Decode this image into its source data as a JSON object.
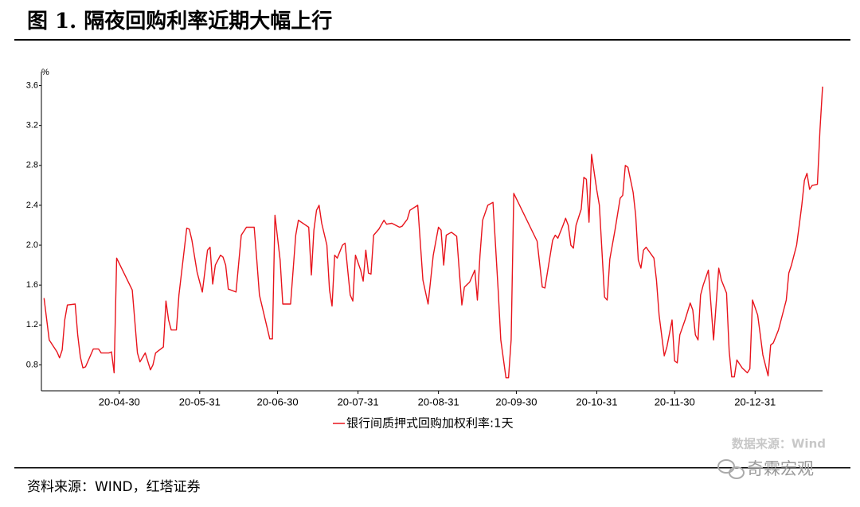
{
  "chart_data": {
    "type": "line",
    "title": "图 1. 隔夜回购利率近期大幅上行",
    "ylabel": "%",
    "watermark": "数据来源：Wind",
    "source": "资料来源：WIND，红塔证券",
    "logo": "奇霖宏观",
    "xlim": [
      "20-03-31",
      "21-01-26"
    ],
    "xticks": [
      "20-04-30",
      "20-05-31",
      "20-06-30",
      "20-07-31",
      "20-08-31",
      "20-09-30",
      "20-10-31",
      "20-11-30",
      "20-12-31"
    ],
    "ylim": [
      0.54,
      3.74
    ],
    "yticks": [
      0.8,
      1.2,
      1.6,
      {
        "value": 2,
        "label": "2.0"
      },
      2.4,
      2.8,
      3.2,
      3.6
    ],
    "grid": false,
    "legend": "bottom",
    "x": [
      "20-04-01",
      "20-04-03",
      "20-04-06",
      "20-04-07",
      "20-04-08",
      "20-04-09",
      "20-04-10",
      "20-04-13",
      "20-04-14",
      "20-04-15",
      "20-04-16",
      "20-04-17",
      "20-04-20",
      "20-04-22",
      "20-04-23",
      "20-04-26",
      "20-04-27",
      "20-04-28",
      "20-04-29",
      "20-05-05",
      "20-05-07",
      "20-05-08",
      "20-05-10",
      "20-05-12",
      "20-05-13",
      "20-05-14",
      "20-05-17",
      "20-05-18",
      "20-05-19",
      "20-05-20",
      "20-05-22",
      "20-05-23",
      "20-05-25",
      "20-05-26",
      "20-05-27",
      "20-05-28",
      "20-05-30",
      "20-06-01",
      "20-06-03",
      "20-06-04",
      "20-06-05",
      "20-06-06",
      "20-06-08",
      "20-06-09",
      "20-06-10",
      "20-06-11",
      "20-06-14",
      "20-06-16",
      "20-06-18",
      "20-06-21",
      "20-06-22",
      "20-06-23",
      "20-06-27",
      "20-06-28",
      "20-06-29",
      "20-07-01",
      "20-07-02",
      "20-07-05",
      "20-07-07",
      "20-07-08",
      "20-07-12",
      "20-07-13",
      "20-07-14",
      "20-07-15",
      "20-07-16",
      "20-07-17",
      "20-07-19",
      "20-07-20",
      "20-07-21",
      "20-07-22",
      "20-07-23",
      "20-07-25",
      "20-07-26",
      "20-07-28",
      "20-07-29",
      "20-07-30",
      "20-08-01",
      "20-08-02",
      "20-08-03",
      "20-08-04",
      "20-08-05",
      "20-08-06",
      "20-08-08",
      "20-08-10",
      "20-08-11",
      "20-08-13",
      "20-08-16",
      "20-08-17",
      "20-08-19",
      "20-08-20",
      "20-08-23",
      "20-08-25",
      "20-08-27",
      "20-08-29",
      "20-08-31",
      "20-09-01",
      "20-09-02",
      "20-09-03",
      "20-09-05",
      "20-09-07",
      "20-09-09",
      "20-09-10",
      "20-09-12",
      "20-09-14",
      "20-09-15",
      "20-09-16",
      "20-09-17",
      "20-09-19",
      "20-09-21",
      "20-09-23",
      "20-09-24",
      "20-09-26",
      "20-09-27",
      "20-09-28",
      "20-09-29",
      "20-10-08",
      "20-10-10",
      "20-10-11",
      "20-10-14",
      "20-10-15",
      "20-10-16",
      "20-10-18",
      "20-10-19",
      "20-10-20",
      "20-10-21",
      "20-10-22",
      "20-10-23",
      "20-10-25",
      "20-10-26",
      "20-10-27",
      "20-10-28",
      "20-10-29",
      "20-10-31",
      "20-11-01",
      "20-11-03",
      "20-11-04",
      "20-11-05",
      "20-11-07",
      "20-11-09",
      "20-11-10",
      "20-11-11",
      "20-11-12",
      "20-11-14",
      "20-11-15",
      "20-11-16",
      "20-11-17",
      "20-11-18",
      "20-11-19",
      "20-11-22",
      "20-11-23",
      "20-11-24",
      "20-11-26",
      "20-11-27",
      "20-11-29",
      "20-11-30",
      "20-12-01",
      "20-12-02",
      "20-12-04",
      "20-12-06",
      "20-12-07",
      "20-12-08",
      "20-12-09",
      "20-12-10",
      "20-12-11",
      "20-12-13",
      "20-12-15",
      "20-12-17",
      "20-12-18",
      "20-12-20",
      "20-12-21",
      "20-12-22",
      "20-12-23",
      "20-12-24",
      "20-12-26",
      "20-12-28",
      "20-12-29",
      "20-12-30",
      "21-01-01",
      "21-01-02",
      "21-01-03",
      "21-01-05",
      "21-01-06",
      "21-01-07",
      "21-01-09",
      "21-01-10",
      "21-01-12",
      "21-01-13",
      "21-01-14",
      "21-01-16",
      "21-01-17",
      "21-01-18",
      "21-01-19",
      "21-01-20",
      "21-01-21",
      "21-01-22",
      "21-01-24",
      "21-01-25",
      "21-01-26"
    ],
    "series": [
      {
        "name": "银行间质押式回购加权利率:1天",
        "color": "#e8141c",
        "values": [
          1.47,
          1.05,
          0.93,
          0.87,
          0.95,
          1.25,
          1.4,
          1.41,
          1.1,
          0.88,
          0.77,
          0.78,
          0.96,
          0.96,
          0.92,
          0.92,
          0.93,
          0.72,
          1.87,
          1.55,
          0.92,
          0.83,
          0.92,
          0.75,
          0.8,
          0.92,
          0.98,
          1.44,
          1.25,
          1.15,
          1.15,
          1.5,
          1.95,
          2.17,
          2.16,
          2.05,
          1.73,
          1.53,
          1.95,
          1.98,
          1.61,
          1.8,
          1.9,
          1.88,
          1.8,
          1.56,
          1.53,
          2.1,
          2.18,
          2.18,
          1.85,
          1.5,
          1.06,
          1.06,
          2.3,
          1.85,
          1.41,
          1.41,
          2.1,
          2.25,
          2.18,
          1.7,
          2.15,
          2.35,
          2.4,
          2.22,
          2.0,
          1.55,
          1.39,
          1.9,
          1.87,
          2.0,
          2.02,
          1.5,
          1.44,
          1.9,
          1.75,
          1.64,
          1.95,
          1.72,
          1.71,
          2.1,
          2.16,
          2.25,
          2.21,
          2.22,
          2.18,
          2.19,
          2.26,
          2.35,
          2.4,
          1.65,
          1.41,
          1.9,
          2.18,
          2.15,
          1.8,
          2.1,
          2.13,
          2.09,
          1.4,
          1.58,
          1.63,
          1.75,
          1.45,
          1.9,
          2.25,
          2.4,
          2.43,
          1.55,
          1.05,
          0.67,
          0.67,
          1.05,
          2.52,
          2.04,
          1.58,
          1.57,
          2.05,
          2.1,
          2.07,
          2.2,
          2.27,
          2.2,
          2.0,
          1.97,
          2.2,
          2.36,
          2.68,
          2.66,
          2.23,
          2.91,
          2.55,
          2.4,
          1.48,
          1.45,
          1.86,
          2.15,
          2.47,
          2.5,
          2.8,
          2.78,
          2.53,
          2.3,
          1.85,
          1.77,
          1.95,
          1.98,
          1.87,
          1.65,
          1.3,
          0.89,
          0.98,
          1.25,
          0.84,
          0.82,
          1.1,
          1.25,
          1.42,
          1.35,
          1.1,
          1.05,
          1.5,
          1.6,
          1.75,
          1.05,
          1.77,
          1.65,
          1.52,
          0.94,
          0.68,
          0.68,
          0.85,
          0.77,
          0.72,
          0.76,
          1.45,
          1.3,
          1.1,
          0.9,
          0.69,
          1.0,
          1.02,
          1.15,
          1.25,
          1.45,
          1.72,
          1.8,
          2.0,
          2.2,
          2.4,
          2.65,
          2.72,
          2.56,
          2.6,
          2.61,
          3.15,
          3.59
        ]
      }
    ]
  }
}
